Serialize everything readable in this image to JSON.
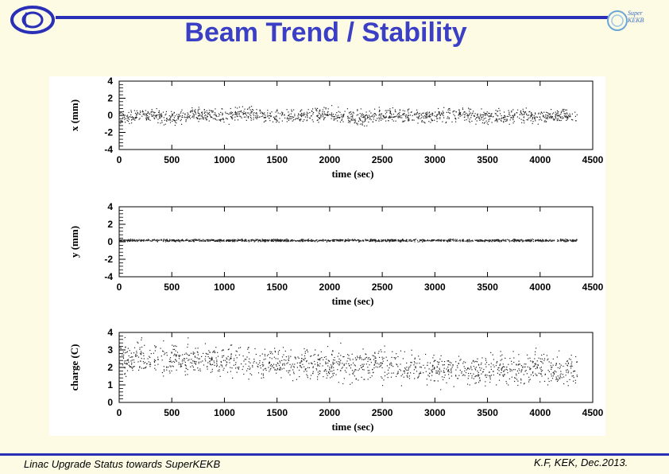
{
  "slide": {
    "title": "Beam Trend / Stability",
    "footer_left": "Linac Upgrade Status towards SuperKEKB",
    "footer_right": "K.F, KEK, Dec.2013.",
    "logo_right_text": [
      "Super",
      "KEKB"
    ],
    "colors": {
      "title": "#3b3fc6",
      "rule": "#2a2fb8",
      "background": "#fdfbe3"
    },
    "icons": {
      "left_logo": "kek-logo-icon",
      "right_logo": "superkekb-logo-icon"
    }
  },
  "chart_data": [
    {
      "type": "scatter",
      "xlabel": "time (sec)",
      "ylabel": "x (mm)",
      "xlim": [
        0,
        4500
      ],
      "ylim": [
        -4,
        4
      ],
      "xticks": [
        0,
        500,
        1000,
        1500,
        2000,
        2500,
        3000,
        3500,
        4000,
        4500
      ],
      "yticks": [
        -4,
        -2,
        0,
        2,
        4
      ],
      "series": [
        {
          "x": [
            0,
            250,
            500,
            750,
            1000,
            1250,
            1500,
            1750,
            2000,
            2250,
            2500,
            2750,
            3000,
            3250,
            3500,
            3750,
            4000,
            4250,
            4350
          ],
          "y": [
            -0.2,
            0.1,
            -0.3,
            0.2,
            -0.1,
            0.3,
            -0.2,
            0.0,
            0.2,
            -0.3,
            0.1,
            -0.1,
            0.0,
            0.2,
            -0.2,
            0.1,
            -0.1,
            0.0,
            -0.2
          ],
          "spread": 1.2
        }
      ]
    },
    {
      "type": "scatter",
      "xlabel": "time (sec)",
      "ylabel": "y (mm)",
      "xlim": [
        0,
        4500
      ],
      "ylim": [
        -4,
        4
      ],
      "xticks": [
        0,
        500,
        1000,
        1500,
        2000,
        2500,
        3000,
        3500,
        4000,
        4500
      ],
      "yticks": [
        -4,
        -2,
        0,
        2,
        4
      ],
      "series": [
        {
          "x": [
            0,
            500,
            1000,
            1500,
            2000,
            2500,
            3000,
            3500,
            4000,
            4350
          ],
          "y": [
            0.2,
            0.2,
            0.2,
            0.2,
            0.2,
            0.2,
            0.2,
            0.2,
            0.2,
            0.2
          ],
          "spread": 0.2
        }
      ]
    },
    {
      "type": "scatter",
      "xlabel": "time (sec)",
      "ylabel": "charge (C)",
      "xlim": [
        0,
        4500
      ],
      "ylim": [
        0,
        4
      ],
      "xticks": [
        0,
        500,
        1000,
        1500,
        2000,
        2500,
        3000,
        3500,
        4000,
        4500
      ],
      "yticks": [
        0,
        1,
        2,
        3,
        4
      ],
      "series": [
        {
          "x": [
            0,
            250,
            500,
            750,
            1000,
            1250,
            1500,
            1750,
            2000,
            2250,
            2500,
            2750,
            3000,
            3250,
            3500,
            3750,
            4000,
            4250,
            4350
          ],
          "y": [
            2.6,
            2.6,
            2.4,
            2.5,
            2.4,
            2.3,
            2.2,
            2.3,
            2.2,
            2.1,
            2.2,
            2.0,
            2.0,
            1.9,
            1.9,
            1.9,
            2.0,
            1.9,
            1.9
          ],
          "spread": 1.3
        }
      ]
    }
  ]
}
